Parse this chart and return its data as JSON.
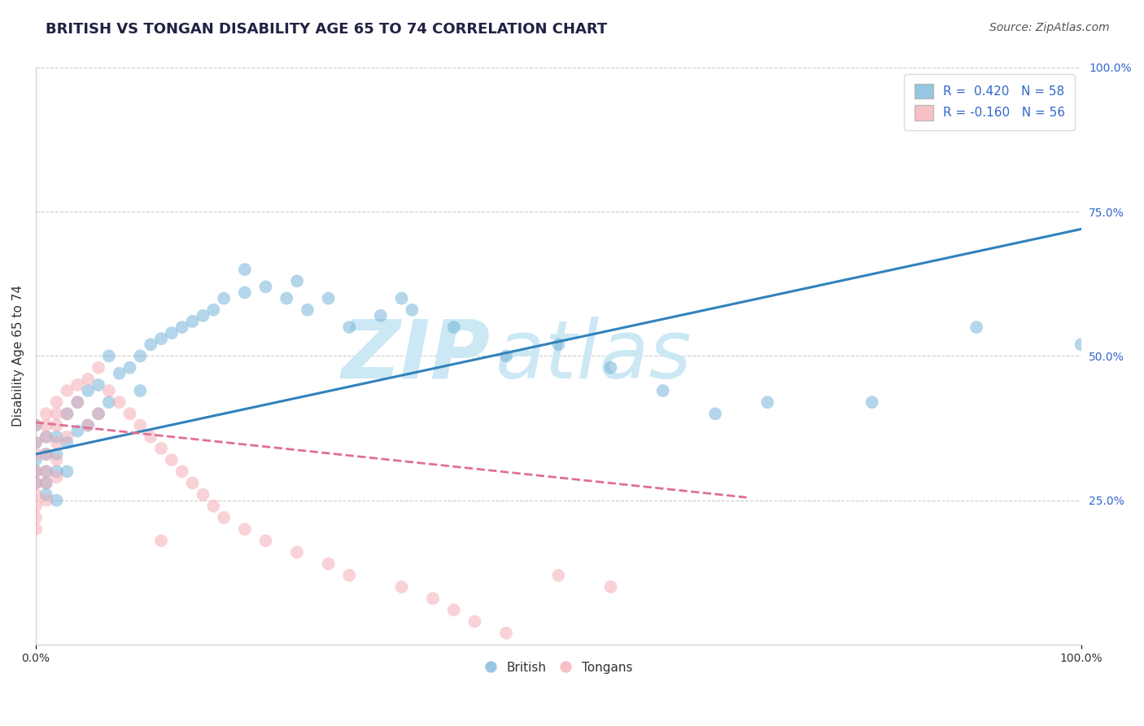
{
  "title": "BRITISH VS TONGAN DISABILITY AGE 65 TO 74 CORRELATION CHART",
  "source_text": "Source: ZipAtlas.com",
  "ylabel": "Disability Age 65 to 74",
  "xlim": [
    0.0,
    1.0
  ],
  "ylim": [
    0.0,
    1.0
  ],
  "ytick_positions": [
    0.25,
    0.5,
    0.75,
    1.0
  ],
  "british_r": 0.42,
  "british_n": 58,
  "tongan_r": -0.16,
  "tongan_n": 56,
  "british_color": "#6baed6",
  "tongan_color": "#f4a6b0",
  "british_line_color": "#3182bd",
  "tongan_line_color": "#e07090",
  "watermark_zip": "ZIP",
  "watermark_atlas": "atlas",
  "watermark_color": "#cce8f4",
  "british_scatter_x": [
    0.0,
    0.0,
    0.0,
    0.0,
    0.0,
    0.01,
    0.01,
    0.01,
    0.01,
    0.01,
    0.02,
    0.02,
    0.02,
    0.02,
    0.03,
    0.03,
    0.03,
    0.04,
    0.04,
    0.05,
    0.05,
    0.06,
    0.06,
    0.07,
    0.07,
    0.08,
    0.09,
    0.1,
    0.1,
    0.11,
    0.12,
    0.13,
    0.14,
    0.15,
    0.16,
    0.17,
    0.18,
    0.2,
    0.22,
    0.24,
    0.26,
    0.28,
    0.3,
    0.33,
    0.36,
    0.4,
    0.45,
    0.5,
    0.55,
    0.6,
    0.65,
    0.7,
    0.8,
    0.9,
    1.0,
    0.25,
    0.2,
    0.35
  ],
  "british_scatter_y": [
    0.35,
    0.38,
    0.32,
    0.3,
    0.28,
    0.36,
    0.33,
    0.3,
    0.28,
    0.26,
    0.36,
    0.33,
    0.3,
    0.25,
    0.4,
    0.35,
    0.3,
    0.42,
    0.37,
    0.44,
    0.38,
    0.45,
    0.4,
    0.5,
    0.42,
    0.47,
    0.48,
    0.5,
    0.44,
    0.52,
    0.53,
    0.54,
    0.55,
    0.56,
    0.57,
    0.58,
    0.6,
    0.61,
    0.62,
    0.6,
    0.58,
    0.6,
    0.55,
    0.57,
    0.58,
    0.55,
    0.5,
    0.52,
    0.48,
    0.44,
    0.4,
    0.42,
    0.42,
    0.55,
    0.52,
    0.63,
    0.65,
    0.6
  ],
  "tongan_scatter_x": [
    0.0,
    0.0,
    0.0,
    0.0,
    0.0,
    0.0,
    0.0,
    0.0,
    0.0,
    0.01,
    0.01,
    0.01,
    0.01,
    0.01,
    0.01,
    0.01,
    0.02,
    0.02,
    0.02,
    0.02,
    0.02,
    0.02,
    0.03,
    0.03,
    0.03,
    0.04,
    0.04,
    0.05,
    0.05,
    0.06,
    0.06,
    0.07,
    0.08,
    0.09,
    0.1,
    0.11,
    0.12,
    0.13,
    0.14,
    0.15,
    0.16,
    0.17,
    0.18,
    0.2,
    0.22,
    0.25,
    0.28,
    0.3,
    0.35,
    0.38,
    0.4,
    0.42,
    0.45,
    0.5,
    0.55,
    0.12
  ],
  "tongan_scatter_y": [
    0.38,
    0.35,
    0.33,
    0.3,
    0.28,
    0.26,
    0.24,
    0.22,
    0.2,
    0.4,
    0.38,
    0.36,
    0.33,
    0.3,
    0.28,
    0.25,
    0.42,
    0.4,
    0.38,
    0.35,
    0.32,
    0.29,
    0.44,
    0.4,
    0.36,
    0.45,
    0.42,
    0.46,
    0.38,
    0.48,
    0.4,
    0.44,
    0.42,
    0.4,
    0.38,
    0.36,
    0.34,
    0.32,
    0.3,
    0.28,
    0.26,
    0.24,
    0.22,
    0.2,
    0.18,
    0.16,
    0.14,
    0.12,
    0.1,
    0.08,
    0.06,
    0.04,
    0.02,
    0.12,
    0.1,
    0.18
  ],
  "british_line_x": [
    0.0,
    1.0
  ],
  "british_line_y": [
    0.33,
    0.72
  ],
  "tongan_line_x": [
    0.0,
    0.68
  ],
  "tongan_line_y": [
    0.385,
    0.255
  ]
}
